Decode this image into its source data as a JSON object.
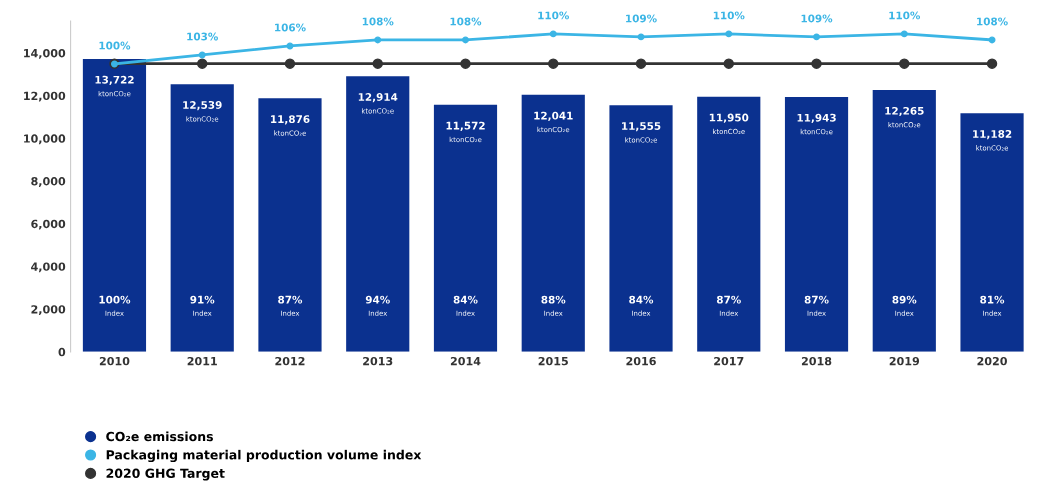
{
  "chart_data": {
    "type": "bar",
    "categories": [
      "2010",
      "2011",
      "2012",
      "2013",
      "2014",
      "2015",
      "2016",
      "2017",
      "2018",
      "2019",
      "2020"
    ],
    "series": [
      {
        "name": "CO₂e emissions",
        "color": "#0b318f",
        "values": [
          13722,
          12539,
          11876,
          12914,
          11572,
          12041,
          11555,
          11950,
          11943,
          12265,
          11182
        ],
        "value_labels": [
          "13,722\nktonCO₂e",
          "12,539\nktonCO₂e",
          "11,876\nktonCO₂e",
          "12,914\nktonCO₂e",
          "11,572\nktonCO₂e",
          "12,041\nktonCO₂e",
          "11,555\nktonCO₂e",
          "11,950\nktonCO₂e",
          "11,943\nktonCO₂e",
          "12,265\nktonCO₂e",
          "11,182\nktonCO₂e"
        ]
      },
      {
        "name": "Packaging material production volume index",
        "type": "line",
        "axis": "y2",
        "color": "#3bb5e5",
        "values": [
          100,
          103,
          106,
          108,
          108,
          110,
          109,
          110,
          109,
          110,
          108
        ],
        "value_labels": [
          "100%",
          "103%",
          "106%",
          "108%",
          "108%",
          "110%",
          "109%",
          "110%",
          "109%",
          "110%",
          "108%"
        ]
      },
      {
        "name": "2020 GHG Target",
        "type": "line",
        "color": "#333333",
        "values": [
          13500,
          13500,
          13500,
          13500,
          13500,
          13500,
          13500,
          13500,
          13500,
          13500,
          13500
        ]
      }
    ],
    "annotations": [
      "100%\nIndex",
      "91%\nIndex",
      "87%\nIndex",
      "94%\nIndex",
      "84%\nIndex",
      "88%\nIndex",
      "84%\nIndex",
      "87%\nIndex",
      "87%\nIndex",
      "89%\nIndex",
      "81%\nIndex"
    ],
    "ylim": [
      0,
      15500
    ],
    "yticks": [
      0,
      {
        "value": 2000,
        "label": "2,000"
      },
      {
        "value": 4000,
        "label": "4,000"
      },
      {
        "value": 6000,
        "label": "6,000"
      },
      {
        "value": 8000,
        "label": "8,000"
      },
      {
        "value": 10000,
        "label": "10,000"
      },
      {
        "value": 12000,
        "label": "12,000"
      },
      {
        "value": 14000,
        "label": "14,000"
      }
    ],
    "marker": "circle",
    "grid": false,
    "legend": "bottom left"
  }
}
